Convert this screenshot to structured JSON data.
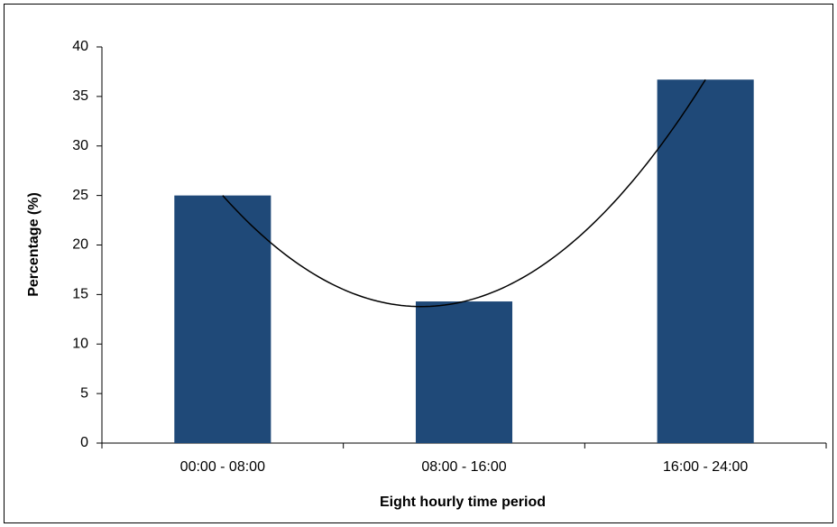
{
  "chart_data": {
    "type": "bar",
    "x_label": "Eight hourly time period",
    "y_label": "Percentage (%)",
    "categories": [
      "00:00 - 08:00",
      "08:00 - 16:00",
      "16:00 - 24:00"
    ],
    "values": [
      25,
      14.3,
      36.7
    ],
    "color": "#1f4978",
    "ylim": [
      0,
      40
    ],
    "yticks": [
      0,
      5,
      10,
      15,
      20,
      25,
      30,
      35,
      40
    ],
    "grid": false,
    "trendline": {
      "type": "polynomial",
      "order": 2,
      "color": "#000000"
    }
  }
}
